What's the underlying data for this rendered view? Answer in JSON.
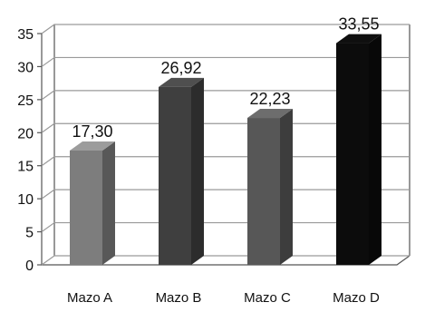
{
  "chart_data": {
    "type": "bar",
    "style": "3d-column",
    "categories": [
      "Mazo A",
      "Mazo B",
      "Mazo C",
      "Mazo D"
    ],
    "values": [
      17.3,
      26.92,
      22.23,
      33.55
    ],
    "data_labels": [
      "17,30",
      "26,92",
      "22,23",
      "33,55"
    ],
    "title": "",
    "xlabel": "",
    "ylabel": "",
    "ylim": [
      0,
      35
    ],
    "yticks": [
      0,
      5,
      10,
      15,
      20,
      25,
      30,
      35
    ],
    "grid": true,
    "legend": "none",
    "colors": [
      "#7d7d7d",
      "#3f3f3f",
      "#575757",
      "#0c0c0c"
    ]
  }
}
